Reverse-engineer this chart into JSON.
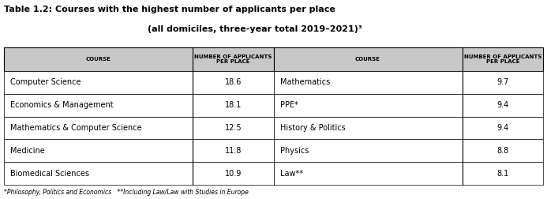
{
  "title_line1": "Table 1.2: Courses with the highest number of applicants per place",
  "title_line2": "(all domiciles, three-year total 2019–2021)³",
  "col_header1": "COURSE",
  "col_header2": "NUMBER OF APPLICANTS\nPER PLACE",
  "left_courses": [
    "Computer Science",
    "Economics & Management",
    "Mathematics & Computer Science",
    "Medicine",
    "Biomedical Sciences"
  ],
  "left_values": [
    "18.6",
    "18.1",
    "12.5",
    "11.8",
    "10.9"
  ],
  "right_courses": [
    "Mathematics",
    "PPE*",
    "History & Politics",
    "Physics",
    "Law**"
  ],
  "right_values": [
    "9.7",
    "9.4",
    "9.4",
    "8.8",
    "8.1"
  ],
  "footnote": "*Philosophy, Politics and Economics   **Including Law/Law with Studies in Europe",
  "header_bg": "#c8c8c8",
  "row_bg_white": "#ffffff",
  "border_color": "#000000",
  "text_color": "#000000",
  "title_color": "#000000",
  "bg_color": "#ffffff",
  "title_fontsize": 8.0,
  "header_fontsize": 5.0,
  "data_fontsize": 7.0,
  "footnote_fontsize": 5.5
}
